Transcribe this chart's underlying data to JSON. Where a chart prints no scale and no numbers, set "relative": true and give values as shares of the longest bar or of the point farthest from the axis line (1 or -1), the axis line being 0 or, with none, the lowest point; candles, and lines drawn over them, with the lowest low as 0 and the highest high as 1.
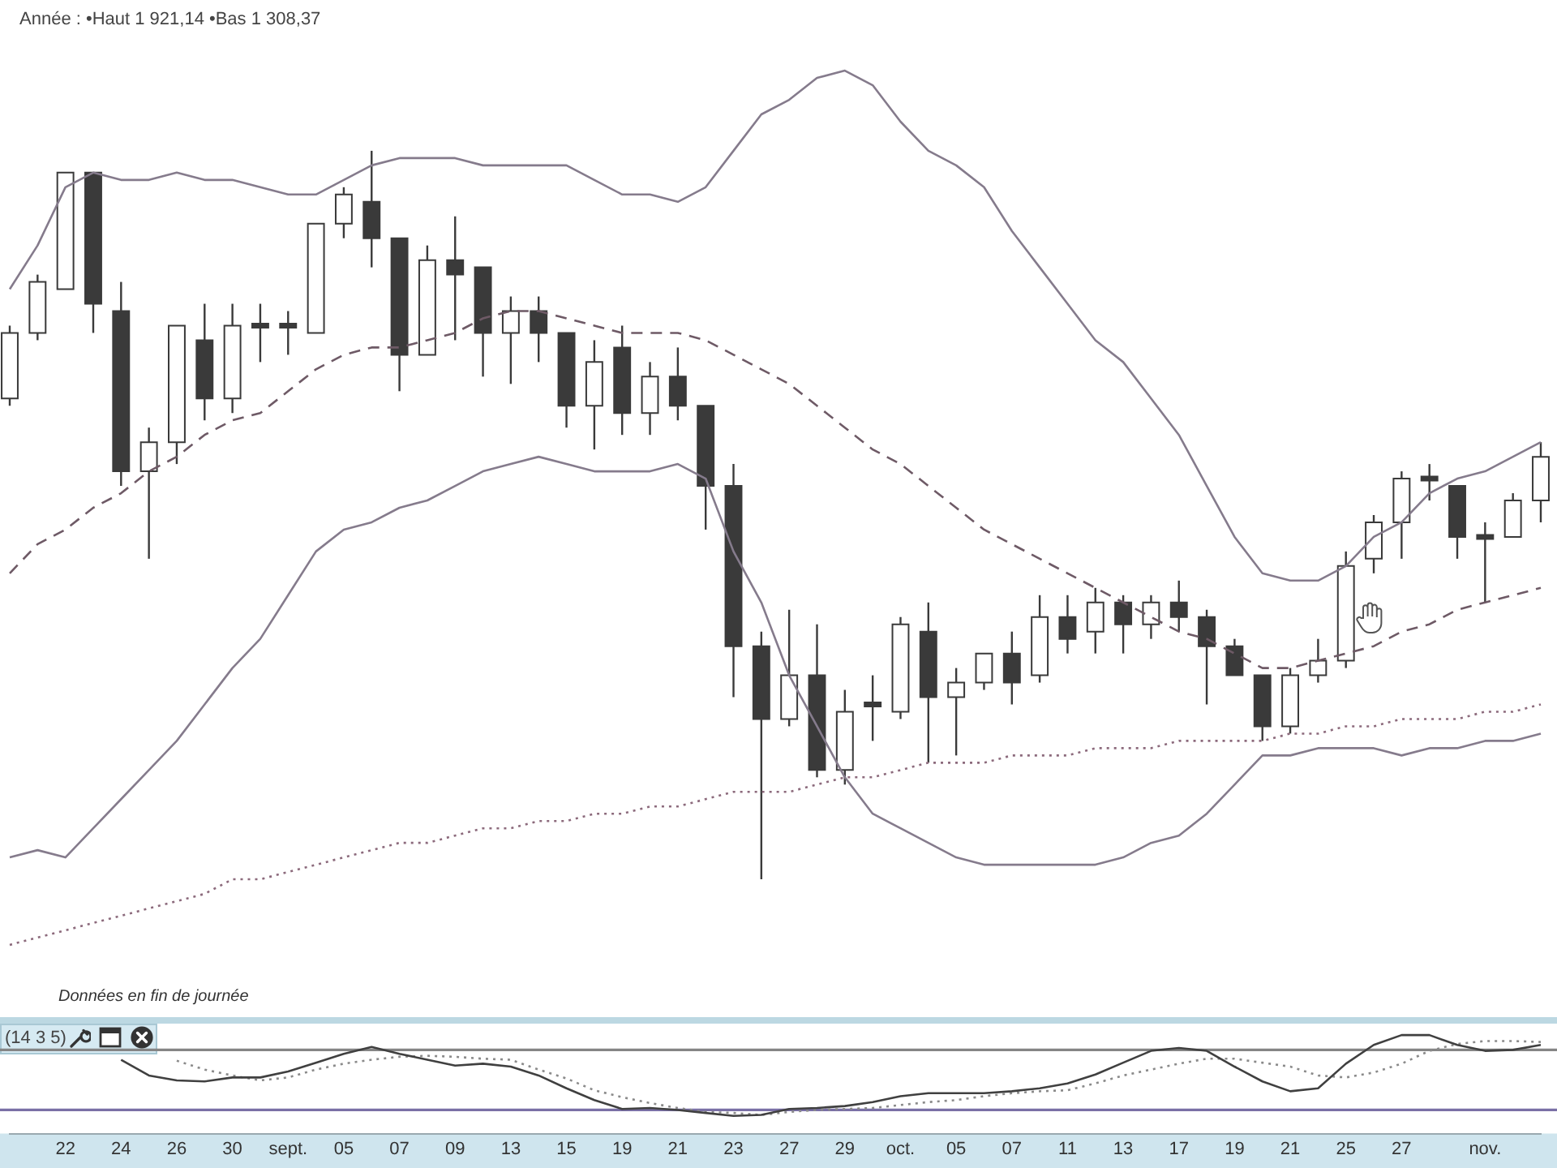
{
  "chart_data": [
    {
      "type": "candlestick",
      "title": "Année : •Haut 1 921,14 •Bas 1 308,37",
      "relative": true,
      "marker": "none",
      "categories": [
        null,
        null,
        null,
        null,
        null,
        null,
        null,
        null,
        null,
        null,
        null,
        null,
        null,
        null,
        null,
        null,
        null,
        null,
        null,
        null,
        null,
        null,
        null,
        null,
        null,
        null,
        null,
        null,
        null,
        null,
        null,
        null,
        null,
        null,
        null,
        null,
        null,
        null,
        null,
        null,
        null,
        null,
        null,
        null,
        null,
        null,
        null,
        null,
        null,
        null,
        null,
        null,
        null,
        null,
        null,
        null
      ],
      "color": "#3a3a3a",
      "colors": [
        "#ffffff",
        "#ffffff",
        "#ffffff",
        "#3a3a3a",
        "#3a3a3a",
        "#ffffff",
        "#ffffff",
        "#3a3a3a",
        "#ffffff",
        "#3a3a3a",
        "#3a3a3a",
        "#ffffff",
        "#ffffff",
        "#3a3a3a",
        "#3a3a3a",
        "#ffffff",
        "#3a3a3a",
        "#3a3a3a",
        "#ffffff",
        "#3a3a3a",
        "#3a3a3a",
        "#ffffff",
        "#3a3a3a",
        "#ffffff",
        "#3a3a3a",
        "#3a3a3a",
        "#3a3a3a",
        "#3a3a3a",
        "#ffffff",
        "#3a3a3a",
        "#ffffff",
        "#3a3a3a",
        "#ffffff",
        "#3a3a3a",
        "#ffffff",
        "#ffffff",
        "#3a3a3a",
        "#ffffff",
        "#3a3a3a",
        "#ffffff",
        "#3a3a3a",
        "#ffffff",
        "#3a3a3a",
        "#3a3a3a",
        "#3a3a3a",
        "#3a3a3a",
        "#ffffff",
        "#ffffff",
        "#ffffff",
        "#ffffff",
        "#ffffff",
        "#3a3a3a",
        "#3a3a3a",
        "#3a3a3a",
        "#ffffff",
        "#ffffff"
      ],
      "ohlc": [
        [
          0.66,
          0.76,
          0.65,
          0.75
        ],
        [
          0.75,
          0.83,
          0.74,
          0.82
        ],
        [
          0.81,
          0.97,
          0.81,
          0.97
        ],
        [
          0.97,
          0.97,
          0.75,
          0.79
        ],
        [
          0.78,
          0.82,
          0.54,
          0.56
        ],
        [
          0.56,
          0.62,
          0.44,
          0.6
        ],
        [
          0.6,
          0.76,
          0.57,
          0.76
        ],
        [
          0.74,
          0.79,
          0.63,
          0.66
        ],
        [
          0.66,
          0.79,
          0.64,
          0.76
        ],
        [
          0.76,
          0.79,
          0.71,
          0.76
        ],
        [
          0.76,
          0.78,
          0.72,
          0.76
        ],
        [
          0.75,
          0.9,
          0.75,
          0.9
        ],
        [
          0.9,
          0.95,
          0.88,
          0.94
        ],
        [
          0.93,
          1,
          0.84,
          0.88
        ],
        [
          0.88,
          0.88,
          0.67,
          0.72
        ],
        [
          0.72,
          0.87,
          0.72,
          0.85
        ],
        [
          0.85,
          0.91,
          0.74,
          0.83
        ],
        [
          0.84,
          0.84,
          0.69,
          0.75
        ],
        [
          0.75,
          0.8,
          0.68,
          0.78
        ],
        [
          0.78,
          0.8,
          0.71,
          0.75
        ],
        [
          0.75,
          0.75,
          0.62,
          0.65
        ],
        [
          0.65,
          0.74,
          0.59,
          0.71
        ],
        [
          0.73,
          0.76,
          0.61,
          0.64
        ],
        [
          0.64,
          0.71,
          0.61,
          0.69
        ],
        [
          0.69,
          0.73,
          0.63,
          0.65
        ],
        [
          0.65,
          0.65,
          0.48,
          0.54
        ],
        [
          0.54,
          0.57,
          0.25,
          0.32
        ],
        [
          0.32,
          0.34,
          0,
          0.22
        ],
        [
          0.22,
          0.37,
          0.21,
          0.28
        ],
        [
          0.28,
          0.35,
          0.14,
          0.15
        ],
        [
          0.15,
          0.26,
          0.13,
          0.23
        ],
        [
          0.24,
          0.28,
          0.19,
          0.24
        ],
        [
          0.23,
          0.36,
          0.22,
          0.35
        ],
        [
          0.34,
          0.38,
          0.16,
          0.25
        ],
        [
          0.25,
          0.29,
          0.17,
          0.27
        ],
        [
          0.27,
          0.31,
          0.26,
          0.31
        ],
        [
          0.31,
          0.34,
          0.24,
          0.27
        ],
        [
          0.28,
          0.39,
          0.27,
          0.36
        ],
        [
          0.36,
          0.39,
          0.31,
          0.33
        ],
        [
          0.34,
          0.4,
          0.31,
          0.38
        ],
        [
          0.38,
          0.39,
          0.31,
          0.35
        ],
        [
          0.35,
          0.39,
          0.33,
          0.38
        ],
        [
          0.38,
          0.41,
          0.34,
          0.36
        ],
        [
          0.36,
          0.37,
          0.24,
          0.32
        ],
        [
          0.32,
          0.33,
          0.28,
          0.28
        ],
        [
          0.28,
          0.28,
          0.19,
          0.21
        ],
        [
          0.21,
          0.29,
          0.2,
          0.28
        ],
        [
          0.28,
          0.33,
          0.27,
          0.3
        ],
        [
          0.3,
          0.45,
          0.29,
          0.43
        ],
        [
          0.44,
          0.5,
          0.42,
          0.49
        ],
        [
          0.49,
          0.56,
          0.44,
          0.55
        ],
        [
          0.55,
          0.57,
          0.52,
          0.55
        ],
        [
          0.54,
          0.54,
          0.44,
          0.47
        ],
        [
          0.47,
          0.49,
          0.38,
          0.47
        ],
        [
          0.47,
          0.53,
          0.47,
          0.52
        ],
        [
          0.52,
          0.6,
          0.49,
          0.58
        ]
      ],
      "series": [
        {
          "type": "line",
          "color": "#857b8c",
          "values": [
            0.81,
            0.87,
            0.95,
            0.97,
            0.96,
            0.96,
            0.97,
            0.96,
            0.96,
            0.95,
            0.94,
            0.94,
            0.96,
            0.98,
            0.99,
            0.99,
            0.99,
            0.98,
            0.98,
            0.98,
            0.98,
            0.96,
            0.94,
            0.94,
            0.93,
            0.95,
            1.0,
            1.05,
            1.07,
            1.1,
            1.11,
            1.09,
            1.04,
            1.0,
            0.98,
            0.95,
            0.89,
            0.84,
            0.79,
            0.74,
            0.71,
            0.66,
            0.61,
            0.54,
            0.47,
            0.42,
            0.41,
            0.41,
            0.43,
            0.47,
            0.49,
            0.53,
            0.55,
            0.56,
            0.58,
            0.6
          ]
        },
        {
          "type": "line",
          "color": "#857b8c",
          "values": [
            0.03,
            0.04,
            0.03,
            0.07,
            0.11,
            0.15,
            0.19,
            0.24,
            0.29,
            0.33,
            0.39,
            0.45,
            0.48,
            0.49,
            0.51,
            0.52,
            0.54,
            0.56,
            0.57,
            0.58,
            0.57,
            0.56,
            0.56,
            0.56,
            0.57,
            0.55,
            0.45,
            0.38,
            0.28,
            0.21,
            0.14,
            0.09,
            0.07,
            0.05,
            0.03,
            0.02,
            0.02,
            0.02,
            0.02,
            0.02,
            0.03,
            0.05,
            0.06,
            0.09,
            0.13,
            0.17,
            0.17,
            0.18,
            0.18,
            0.18,
            0.17,
            0.18,
            0.18,
            0.19,
            0.19,
            0.2
          ]
        },
        {
          "type": "line",
          "color": "#6e5a66",
          "line_style": "dashed",
          "values": [
            0.42,
            0.46,
            0.48,
            0.51,
            0.53,
            0.56,
            0.58,
            0.61,
            0.63,
            0.64,
            0.67,
            0.7,
            0.72,
            0.73,
            0.73,
            0.74,
            0.75,
            0.77,
            0.78,
            0.78,
            0.77,
            0.76,
            0.75,
            0.75,
            0.75,
            0.74,
            0.72,
            0.7,
            0.68,
            0.65,
            0.62,
            0.59,
            0.57,
            0.54,
            0.51,
            0.48,
            0.46,
            0.44,
            0.42,
            0.4,
            0.38,
            0.36,
            0.34,
            0.33,
            0.31,
            0.29,
            0.29,
            0.3,
            0.31,
            0.32,
            0.34,
            0.35,
            0.37,
            0.38,
            0.39,
            0.4
          ]
        },
        {
          "type": "line",
          "color": "#8c6a7c",
          "line_style": "dotted",
          "values": [
            -0.09,
            -0.08,
            -0.07,
            -0.06,
            -0.05,
            -0.04,
            -0.03,
            -0.02,
            0,
            0,
            0.01,
            0.02,
            0.03,
            0.04,
            0.05,
            0.05,
            0.06,
            0.07,
            0.07,
            0.08,
            0.08,
            0.09,
            0.09,
            0.1,
            0.1,
            0.11,
            0.12,
            0.12,
            0.12,
            0.13,
            0.14,
            0.14,
            0.15,
            0.16,
            0.16,
            0.16,
            0.17,
            0.17,
            0.17,
            0.18,
            0.18,
            0.18,
            0.19,
            0.19,
            0.19,
            0.19,
            0.2,
            0.2,
            0.21,
            0.21,
            0.22,
            0.22,
            0.22,
            0.23,
            0.23,
            0.24
          ]
        }
      ],
      "annotations": [
        "Données en fin de journée"
      ]
    },
    {
      "type": "line",
      "title": "(14 3 5)",
      "relative": true,
      "tick_labels": "x",
      "marker": "none",
      "categories": [
        null,
        null,
        "22",
        null,
        "24",
        null,
        "26",
        null,
        "30",
        null,
        "sept.",
        null,
        "05",
        null,
        "07",
        null,
        "09",
        null,
        "13",
        null,
        "15",
        null,
        "19",
        null,
        "21",
        null,
        "23",
        null,
        "27",
        null,
        "29",
        null,
        "oct.",
        null,
        "05",
        null,
        "07",
        null,
        "11",
        null,
        "13",
        null,
        "17",
        null,
        "19",
        null,
        "21",
        null,
        "25",
        null,
        "27",
        null,
        null,
        "nov.",
        null,
        null
      ],
      "series": [
        {
          "color": "#404040",
          "values": [
            null,
            null,
            null,
            null,
            0.75,
            0.59,
            0.54,
            0.53,
            0.57,
            0.57,
            0.63,
            0.72,
            0.81,
            0.88,
            0.81,
            0.75,
            0.69,
            0.71,
            0.68,
            0.59,
            0.46,
            0.34,
            0.25,
            0.26,
            0.24,
            0.21,
            0.18,
            0.19,
            0.25,
            0.26,
            0.28,
            0.32,
            0.38,
            0.41,
            0.41,
            0.41,
            0.43,
            0.46,
            0.51,
            0.6,
            0.72,
            0.84,
            0.87,
            0.84,
            0.68,
            0.53,
            0.43,
            0.46,
            0.71,
            0.9,
            1,
            1,
            0.9,
            0.84,
            0.85,
            0.9
          ]
        },
        {
          "color": "#8a8a8a",
          "line_style": "dotted",
          "values": [
            null,
            null,
            null,
            null,
            null,
            null,
            0.74,
            0.65,
            0.59,
            0.54,
            0.57,
            0.65,
            0.71,
            0.75,
            0.78,
            0.79,
            0.78,
            0.76,
            0.75,
            0.65,
            0.56,
            0.44,
            0.37,
            0.31,
            0.26,
            0.22,
            0.21,
            0.19,
            0.22,
            0.24,
            0.25,
            0.26,
            0.29,
            0.32,
            0.34,
            0.38,
            0.41,
            0.43,
            0.44,
            0.51,
            0.59,
            0.65,
            0.71,
            0.76,
            0.76,
            0.72,
            0.68,
            0.59,
            0.57,
            0.62,
            0.71,
            0.84,
            0.91,
            0.94,
            0.94,
            0.93
          ]
        }
      ],
      "ref_lines": [
        {
          "axis": "y",
          "value": 0.85,
          "color": "#858585"
        },
        {
          "axis": "y",
          "value": 0.24,
          "color": "#7a70a6"
        }
      ]
    }
  ]
}
